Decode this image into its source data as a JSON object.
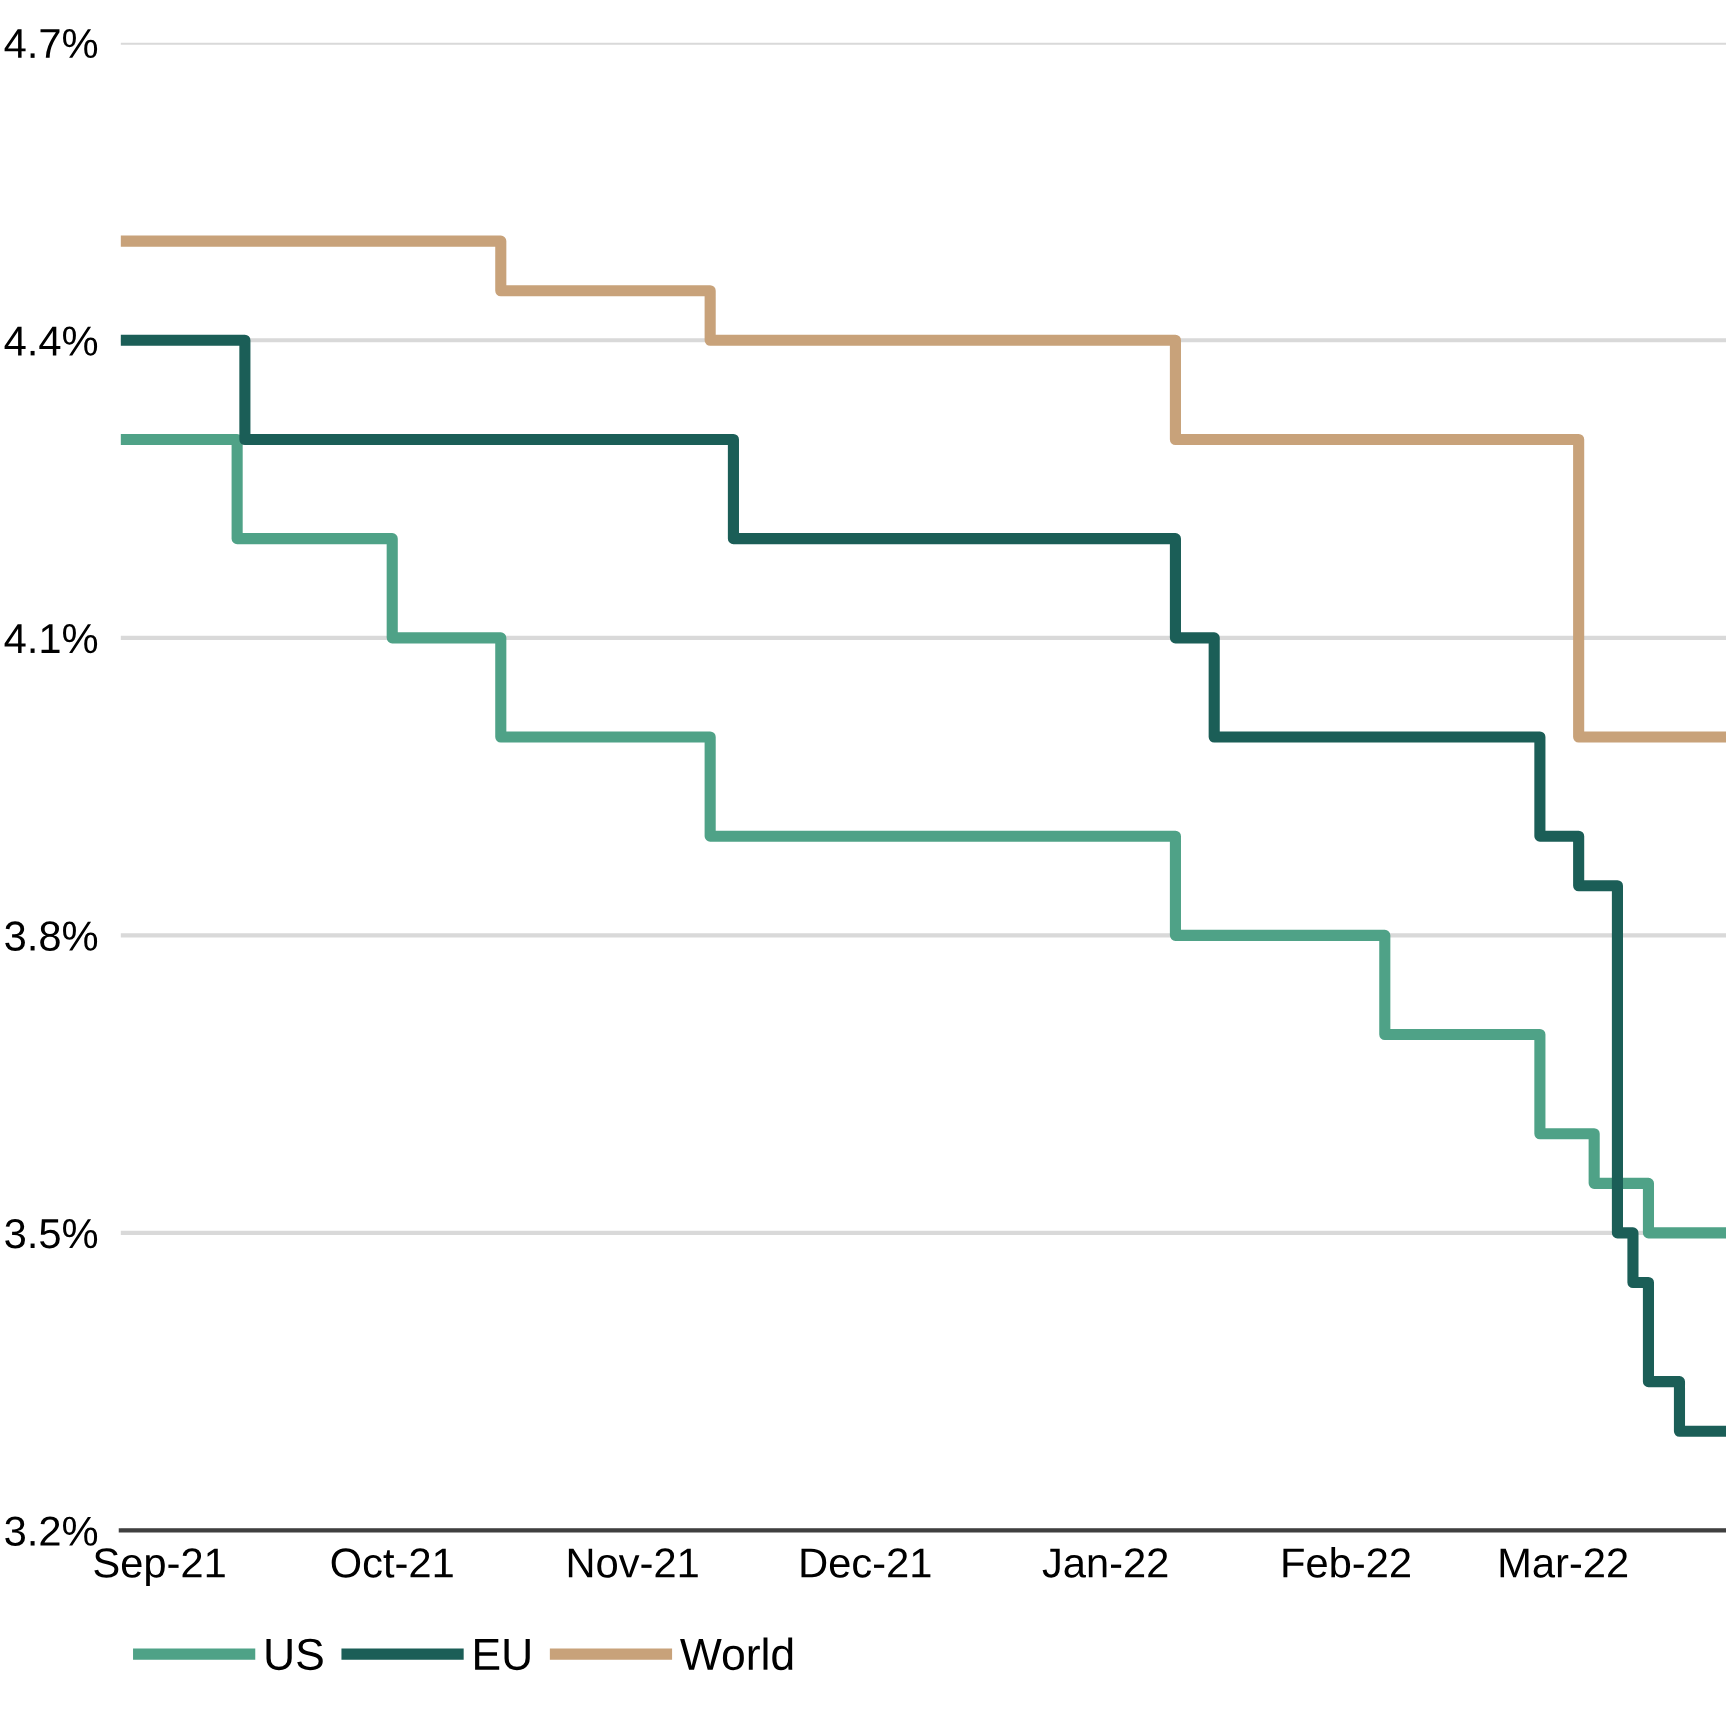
{
  "chart_data": {
    "type": "step",
    "xlim": [
      "2021-08-27",
      "2022-03-22"
    ],
    "ylim": [
      3.2,
      4.7
    ],
    "yticks": [
      {
        "value": 3.2,
        "label": "3.2%"
      },
      {
        "value": 3.5,
        "label": "3.5%"
      },
      {
        "value": 3.8,
        "label": "3.8%"
      },
      {
        "value": 4.1,
        "label": "4.1%"
      },
      {
        "value": 4.4,
        "label": "4.4%"
      },
      {
        "value": 4.7,
        "label": "4.7%"
      }
    ],
    "xticks": [
      {
        "value": "2021-09-01",
        "label": "Sep-21"
      },
      {
        "value": "2021-10-01",
        "label": "Oct-21"
      },
      {
        "value": "2021-11-01",
        "label": "Nov-21"
      },
      {
        "value": "2021-12-01",
        "label": "Dec-21"
      },
      {
        "value": "2022-01-01",
        "label": "Jan-22"
      },
      {
        "value": "2022-02-01",
        "label": "Feb-22"
      },
      {
        "value": "2022-03-01",
        "label": "Mar-22"
      }
    ],
    "grid": "y",
    "legend": "bottom left",
    "line_style": "solid",
    "marker": "none",
    "series": [
      {
        "name": "US",
        "color": "#4fa287",
        "x": [
          "2021-08-27",
          "2021-09-11",
          "2021-10-01",
          "2021-10-15",
          "2021-11-11",
          "2022-01-10",
          "2022-02-06",
          "2022-02-26",
          "2022-03-05",
          "2022-03-12",
          "2022-03-22"
        ],
        "values": [
          4.3,
          4.2,
          4.1,
          4.0,
          3.9,
          3.8,
          3.7,
          3.6,
          3.55,
          3.5,
          3.5
        ]
      },
      {
        "name": "EU",
        "color": "#1b5e57",
        "x": [
          "2021-08-27",
          "2021-09-12",
          "2021-11-14",
          "2022-01-10",
          "2022-01-15",
          "2022-02-26",
          "2022-03-03",
          "2022-03-08",
          "2022-03-10",
          "2022-03-12",
          "2022-03-16",
          "2022-03-22"
        ],
        "values": [
          4.4,
          4.3,
          4.2,
          4.1,
          4.0,
          3.9,
          3.85,
          3.5,
          3.45,
          3.35,
          3.3,
          3.3
        ]
      },
      {
        "name": "World",
        "color": "#c8a27a",
        "x": [
          "2021-08-27",
          "2021-10-15",
          "2021-11-11",
          "2022-01-10",
          "2022-03-03",
          "2022-03-22"
        ],
        "values": [
          4.5,
          4.45,
          4.4,
          4.3,
          4.0,
          4.0
        ]
      }
    ]
  }
}
